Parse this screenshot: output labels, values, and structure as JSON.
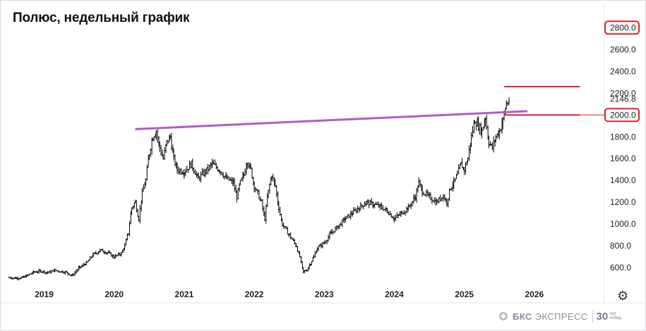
{
  "title": "Полюс, недельный график",
  "chart_data": {
    "type": "ohlc",
    "title": "Полюс, недельный график",
    "x_ticks": [
      "2019",
      "2020",
      "2021",
      "2022",
      "2023",
      "2024",
      "2025",
      "2026"
    ],
    "y_ticks": [
      600,
      800,
      1000,
      1200,
      1400,
      1600,
      1800,
      2000,
      2200,
      2400,
      2600,
      2800
    ],
    "ylim": [
      440,
      2860
    ],
    "xlim": [
      2018.45,
      2027.0
    ],
    "highlighted_labels": [
      "2800.0",
      "2000.0"
    ],
    "last_price_label": "2146.8",
    "series": [
      {
        "name": "",
        "type": "ohlc",
        "points": [
          [
            2018.5,
            510
          ],
          [
            2018.6,
            505
          ],
          [
            2018.7,
            512
          ],
          [
            2018.75,
            525
          ],
          [
            2018.85,
            560
          ],
          [
            2018.95,
            570
          ],
          [
            2019.05,
            555
          ],
          [
            2019.15,
            575
          ],
          [
            2019.3,
            560
          ],
          [
            2019.4,
            530
          ],
          [
            2019.5,
            600
          ],
          [
            2019.6,
            640
          ],
          [
            2019.7,
            720
          ],
          [
            2019.8,
            760
          ],
          [
            2019.9,
            740
          ],
          [
            2020.0,
            700
          ],
          [
            2020.1,
            730
          ],
          [
            2020.15,
            800
          ],
          [
            2020.2,
            920
          ],
          [
            2020.25,
            1150
          ],
          [
            2020.3,
            1200
          ],
          [
            2020.35,
            1050
          ],
          [
            2020.4,
            1280
          ],
          [
            2020.45,
            1400
          ],
          [
            2020.5,
            1650
          ],
          [
            2020.55,
            1800
          ],
          [
            2020.6,
            1850
          ],
          [
            2020.65,
            1700
          ],
          [
            2020.7,
            1600
          ],
          [
            2020.75,
            1750
          ],
          [
            2020.8,
            1800
          ],
          [
            2020.85,
            1600
          ],
          [
            2020.9,
            1500
          ],
          [
            2021.0,
            1480
          ],
          [
            2021.1,
            1550
          ],
          [
            2021.2,
            1420
          ],
          [
            2021.3,
            1480
          ],
          [
            2021.4,
            1550
          ],
          [
            2021.5,
            1500
          ],
          [
            2021.6,
            1420
          ],
          [
            2021.7,
            1380
          ],
          [
            2021.75,
            1250
          ],
          [
            2021.8,
            1380
          ],
          [
            2021.85,
            1450
          ],
          [
            2021.9,
            1580
          ],
          [
            2021.95,
            1500
          ],
          [
            2022.0,
            1350
          ],
          [
            2022.05,
            1280
          ],
          [
            2022.1,
            1200
          ],
          [
            2022.15,
            1050
          ],
          [
            2022.2,
            1300
          ],
          [
            2022.25,
            1450
          ],
          [
            2022.3,
            1350
          ],
          [
            2022.35,
            1150
          ],
          [
            2022.4,
            1000
          ],
          [
            2022.5,
            900
          ],
          [
            2022.6,
            800
          ],
          [
            2022.65,
            700
          ],
          [
            2022.7,
            560
          ],
          [
            2022.75,
            580
          ],
          [
            2022.8,
            640
          ],
          [
            2022.85,
            700
          ],
          [
            2022.9,
            780
          ],
          [
            2023.0,
            830
          ],
          [
            2023.1,
            920
          ],
          [
            2023.2,
            980
          ],
          [
            2023.3,
            1050
          ],
          [
            2023.4,
            1100
          ],
          [
            2023.5,
            1150
          ],
          [
            2023.6,
            1200
          ],
          [
            2023.7,
            1180
          ],
          [
            2023.8,
            1160
          ],
          [
            2023.9,
            1120
          ],
          [
            2024.0,
            1050
          ],
          [
            2024.1,
            1100
          ],
          [
            2024.2,
            1150
          ],
          [
            2024.3,
            1250
          ],
          [
            2024.35,
            1380
          ],
          [
            2024.4,
            1300
          ],
          [
            2024.5,
            1250
          ],
          [
            2024.6,
            1200
          ],
          [
            2024.7,
            1260
          ],
          [
            2024.75,
            1200
          ],
          [
            2024.8,
            1330
          ],
          [
            2024.85,
            1380
          ],
          [
            2024.9,
            1450
          ],
          [
            2024.95,
            1550
          ],
          [
            2025.0,
            1500
          ],
          [
            2025.05,
            1600
          ],
          [
            2025.1,
            1800
          ],
          [
            2025.15,
            1950
          ],
          [
            2025.2,
            1900
          ],
          [
            2025.25,
            1850
          ],
          [
            2025.3,
            1980
          ],
          [
            2025.35,
            1750
          ],
          [
            2025.4,
            1700
          ],
          [
            2025.45,
            1800
          ],
          [
            2025.5,
            1850
          ],
          [
            2025.55,
            1950
          ],
          [
            2025.6,
            2100
          ],
          [
            2025.65,
            2146.8
          ]
        ]
      }
    ],
    "annotations": [
      {
        "type": "trendline",
        "color": "#b15cc9",
        "from": [
          2020.3,
          1870
        ],
        "to": [
          2025.9,
          2035
        ]
      },
      {
        "type": "horizontal_segment",
        "color": "#e0222b",
        "from": [
          2025.57,
          2260
        ],
        "to": [
          2026.65,
          2260
        ]
      },
      {
        "type": "horizontal_segment",
        "color": "#e0222b",
        "from": [
          2025.57,
          2000
        ],
        "to": [
          2026.65,
          2000
        ]
      }
    ]
  },
  "watermark": {
    "brand_bold": "БКС",
    "brand_rest": " ЭКСПРЕСС",
    "years_number": "30",
    "years_words": [
      "лет",
      "побед"
    ]
  },
  "controls": {
    "settings_icon": "gear-icon"
  },
  "colors": {
    "candles": "#000000",
    "trendline": "#b15cc9",
    "levels": "#e0222b",
    "highlight_box": "#e0222b"
  }
}
